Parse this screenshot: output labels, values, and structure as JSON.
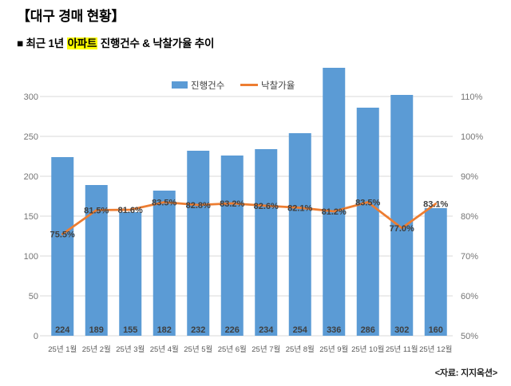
{
  "page": {
    "title": "【대구 경매 현황】",
    "subtitle": {
      "prefix": "■ 최근 1년 ",
      "highlight": "아파트",
      "suffix": " 진행건수 & 낙찰가율 추이"
    },
    "source": "<자료: 지지옥션>"
  },
  "colors": {
    "bar": "#5B9BD5",
    "line": "#ED7D31",
    "grid": "#D9D9D9",
    "axis_tick_text": "#757575",
    "data_label_text": "#3F3F3F",
    "category_text": "#595959",
    "highlight_bg": "#FFFF00"
  },
  "chart_data": {
    "type": "bar",
    "subtype": "combo-bar-line-dual-axis",
    "title": "최근 1년 아파트 진행건수 & 낙찰가율 추이",
    "categories": [
      "25년 1월",
      "25년 2월",
      "25년 3월",
      "25년 4월",
      "25년 5월",
      "25년 6월",
      "25년 7월",
      "25년 8월",
      "25년 9월",
      "25년 10월",
      "25년 11월",
      "25년 12월"
    ],
    "series": [
      {
        "name": "진행건수",
        "type": "bar",
        "axis": "left",
        "values": [
          224,
          189,
          155,
          182,
          232,
          226,
          234,
          254,
          336,
          286,
          302,
          160
        ]
      },
      {
        "name": "낙찰가율",
        "type": "line",
        "axis": "right",
        "unit": "%",
        "values": [
          75.5,
          81.5,
          81.6,
          83.5,
          82.8,
          83.2,
          82.6,
          82.1,
          81.2,
          83.5,
          77.0,
          83.1
        ]
      }
    ],
    "left_axis": {
      "ticks": [
        0,
        50,
        100,
        150,
        200,
        250,
        300
      ],
      "min": 0,
      "max": 340
    },
    "right_axis": {
      "ticks": [
        50,
        60,
        70,
        80,
        90,
        100,
        110
      ],
      "suffix": "%",
      "min": 50,
      "max": 118
    },
    "legend": {
      "position": "top-center"
    },
    "grid": true,
    "data_labels": "center"
  }
}
